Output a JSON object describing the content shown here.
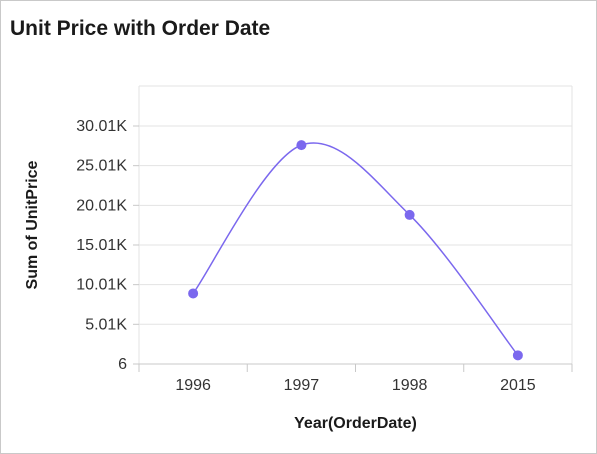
{
  "chart_data": {
    "type": "line",
    "title": "Unit Price with Order Date",
    "xlabel": "Year(OrderDate)",
    "ylabel": "Sum of UnitPrice",
    "categories": [
      "1996",
      "1997",
      "1998",
      "2015"
    ],
    "series": [
      {
        "values": [
          8900,
          27600,
          18800,
          1100
        ]
      }
    ],
    "y_ticks": [
      6,
      5010,
      10010,
      15010,
      20010,
      25010,
      30010
    ],
    "y_tick_labels": [
      "6",
      "5.01K",
      "10.01K",
      "15.01K",
      "20.01K",
      "25.01K",
      "30.01K"
    ],
    "ylim": [
      6,
      30010
    ],
    "grid": true,
    "smooth": true,
    "colors": {
      "series": "#7b68ee",
      "grid": "#e3e3e3",
      "axis": "#c8c8c8"
    }
  }
}
